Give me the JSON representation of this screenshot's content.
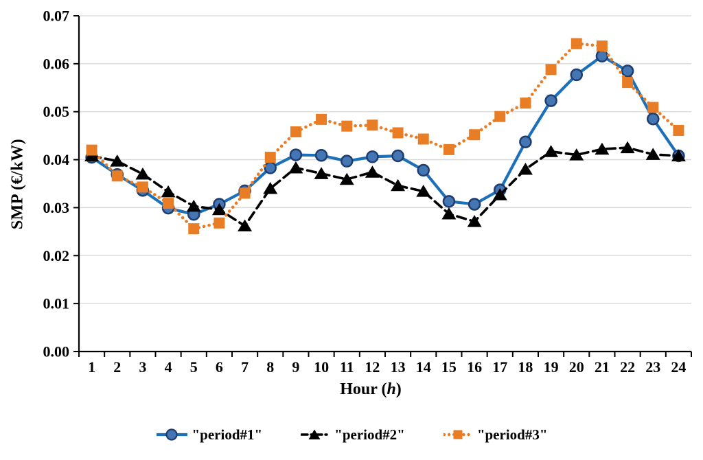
{
  "chart_data": {
    "type": "line",
    "title": "",
    "xlabel": "Hour (h)",
    "xlabel_parts": {
      "prefix": "Hour (",
      "italic": "h",
      "suffix": ")"
    },
    "ylabel": "SMP (€/kW)",
    "x": [
      1,
      2,
      3,
      4,
      5,
      6,
      7,
      8,
      9,
      10,
      11,
      12,
      13,
      14,
      15,
      16,
      17,
      18,
      19,
      20,
      21,
      22,
      23,
      24
    ],
    "xtick_labels": [
      "1",
      "2",
      "3",
      "4",
      "5",
      "6",
      "7",
      "8",
      "9",
      "10",
      "11",
      "12",
      "13",
      "14",
      "15",
      "16",
      "17",
      "18",
      "19",
      "20",
      "21",
      "22",
      "23",
      "24"
    ],
    "ytick_labels": [
      "0.00",
      "0.01",
      "0.02",
      "0.03",
      "0.04",
      "0.05",
      "0.06",
      "0.07"
    ],
    "ylim": [
      0,
      0.07
    ],
    "ytick_step": 0.01,
    "grid": "horizontal",
    "legend_position": "bottom-center",
    "colors": {
      "gridline": "#D8D8D8",
      "axis": "#000000",
      "text": "#000000"
    },
    "series": [
      {
        "name": "\"period#1\"",
        "line_style": "solid",
        "marker": "circle",
        "color": "#1C70B9",
        "marker_fill": "#4576B4",
        "marker_stroke": "#1E3C6E",
        "values": [
          0.0405,
          0.0369,
          0.0336,
          0.0299,
          0.0286,
          0.0307,
          0.0335,
          0.0383,
          0.041,
          0.0409,
          0.0397,
          0.0406,
          0.0408,
          0.0378,
          0.0313,
          0.0307,
          0.0337,
          0.0437,
          0.0523,
          0.0577,
          0.0616,
          0.0585,
          0.0485,
          0.0408
        ]
      },
      {
        "name": "\"period#2\"",
        "line_style": "dashed",
        "marker": "triangle",
        "color": "#000000",
        "marker_fill": "#000000",
        "marker_stroke": "#000000",
        "values": [
          0.0408,
          0.0397,
          0.037,
          0.0333,
          0.0303,
          0.0296,
          0.0262,
          0.034,
          0.0383,
          0.0371,
          0.0359,
          0.0374,
          0.0346,
          0.0334,
          0.0287,
          0.0271,
          0.0327,
          0.038,
          0.0417,
          0.041,
          0.0422,
          0.0425,
          0.0411,
          0.0408
        ]
      },
      {
        "name": "\"period#3\"",
        "line_style": "dotted",
        "marker": "square",
        "color": "#E87D25",
        "marker_fill": "#E87D25",
        "marker_stroke": "#E87D25",
        "values": [
          0.042,
          0.0366,
          0.0343,
          0.0309,
          0.0256,
          0.0268,
          0.033,
          0.0405,
          0.0458,
          0.0484,
          0.047,
          0.0472,
          0.0456,
          0.0443,
          0.0421,
          0.0452,
          0.049,
          0.0518,
          0.0588,
          0.0642,
          0.0637,
          0.0561,
          0.0509,
          0.0461
        ]
      }
    ]
  }
}
